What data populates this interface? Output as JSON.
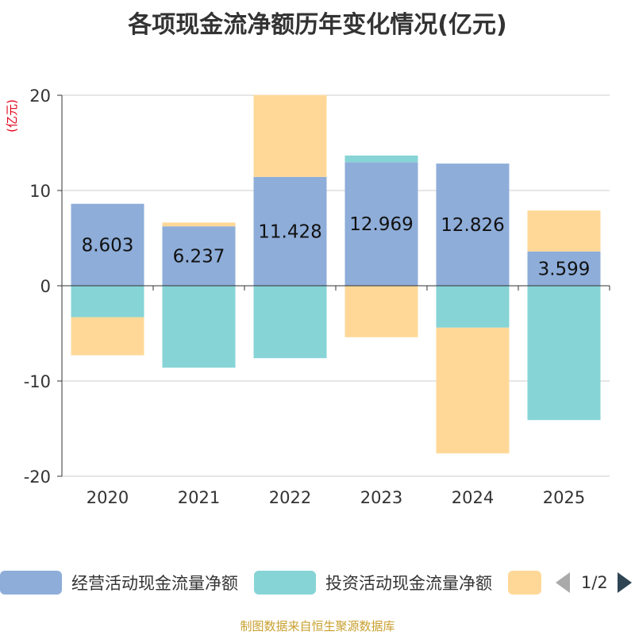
{
  "chart_data": {
    "type": "bar",
    "stacked": true,
    "title": "各项现金流净额历年变化情况(亿元)",
    "ylabel": "(亿元)",
    "xlabel": "",
    "ylim": [
      -20,
      20
    ],
    "yticks": [
      20,
      10,
      0,
      -10,
      -20
    ],
    "categories": [
      "2020",
      "2021",
      "2022",
      "2023",
      "2024",
      "2025"
    ],
    "series": [
      {
        "name": "经营活动现金流量净额",
        "color": "#8eadd9",
        "values": [
          8.603,
          6.237,
          11.428,
          12.969,
          12.826,
          3.599
        ]
      },
      {
        "name": "投资活动现金流量净额",
        "color": "#86d4d6",
        "values": [
          -3.3,
          -8.6,
          -7.6,
          0.7,
          -4.4,
          -14.1
        ]
      },
      {
        "name": "",
        "color": "#ffd898",
        "values": [
          -4.0,
          0.4,
          8.6,
          -5.4,
          -13.2,
          4.3
        ]
      }
    ],
    "data_labels": [
      "8.603",
      "6.237",
      "11.428",
      "12.969",
      "12.826",
      "3.599"
    ],
    "grid": true,
    "legend_position": "bottom"
  },
  "legend": {
    "page_text": "1/2"
  },
  "footer": "制图数据来自恒生聚源数据库"
}
